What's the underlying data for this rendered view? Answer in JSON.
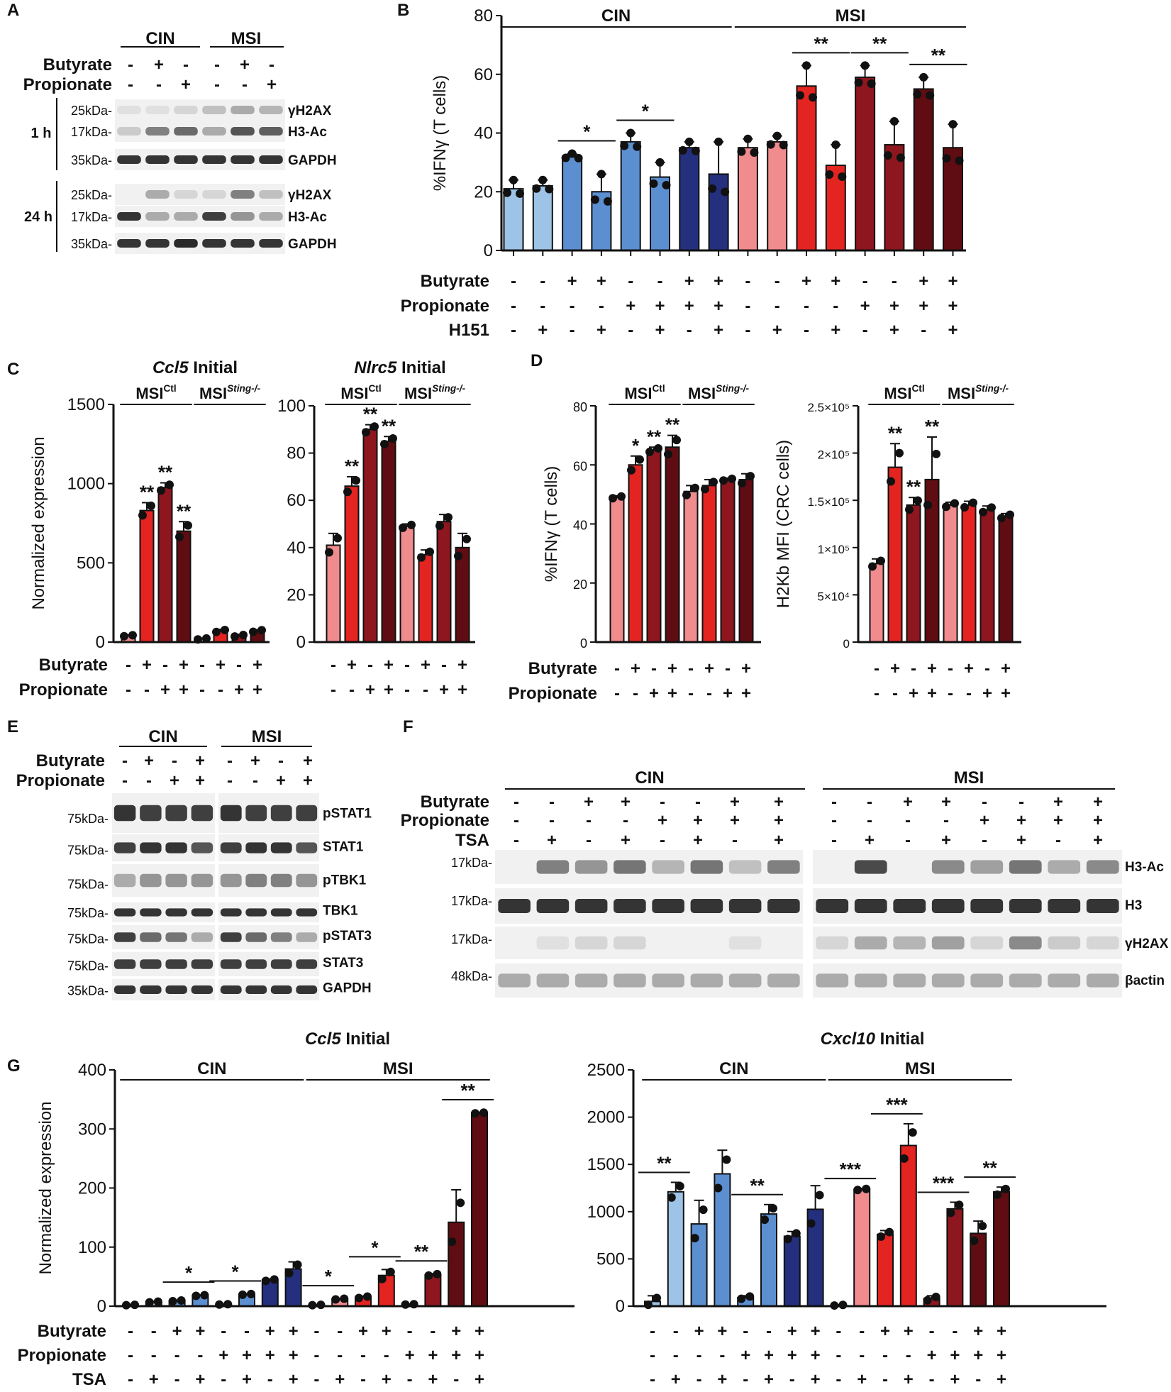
{
  "colors": {
    "light_blue": "#9dc3e6",
    "mid_blue": "#5b8fd0",
    "dark_blue": "#24307e",
    "pink": "#f08b8e",
    "red": "#e32421",
    "dark_red": "#8e161e",
    "maroon": "#5f0d12",
    "black": "#111111"
  },
  "panels": {
    "A": "A",
    "B": "B",
    "C": "C",
    "D": "D",
    "E": "E",
    "F": "F",
    "G": "G"
  },
  "common": {
    "butyrate": "Butyrate",
    "propionate": "Propionate",
    "h151": "H151",
    "tsa": "TSA",
    "cin": "CIN",
    "msi": "MSI",
    "msi_ctl": "MSI",
    "ctl_sup": "Ctl",
    "sting_sup": "Sting-/-",
    "norm_expr": "Normalized expression",
    "ifng_t": "%IFNγ (T cells)",
    "h2kb": "H2Kb MFI (CRC cells)",
    "ccl5_initial_gene": "Ccl5",
    "nlrc5_initial_gene": "Nlrc5",
    "cxcl10_initial_gene": "Cxcl10",
    "initial_word": "Initial"
  },
  "blotA": {
    "time_1h": "1 h",
    "time_24h": "24 h",
    "mw": [
      "25kDa-",
      "17kDa-",
      "35kDa-"
    ],
    "bands": [
      "γH2AX",
      "H3-Ac",
      "GAPDH"
    ],
    "butyrate_signs": [
      "-",
      "+",
      "-",
      "-",
      "+",
      "-"
    ],
    "propionate_signs": [
      "-",
      "-",
      "+",
      "-",
      "-",
      "+"
    ]
  },
  "blotE": {
    "butyrate_signs": [
      "-",
      "+",
      "-",
      "+",
      "-",
      "+",
      "-",
      "+"
    ],
    "propionate_signs": [
      "-",
      "-",
      "+",
      "+",
      "-",
      "-",
      "+",
      "+"
    ],
    "rows": [
      {
        "mw": "75kDa-",
        "label": "pSTAT1"
      },
      {
        "mw": "75kDa-",
        "label": "STAT1"
      },
      {
        "mw": "75kDa-",
        "label": "pTBK1"
      },
      {
        "mw": "75kDa-",
        "label": "TBK1"
      },
      {
        "mw": "75kDa-",
        "label": "pSTAT3"
      },
      {
        "mw": "75kDa-",
        "label": "STAT3"
      },
      {
        "mw": "35kDa-",
        "label": "GAPDH"
      }
    ]
  },
  "blotF": {
    "butyrate_signs": [
      "-",
      "-",
      "+",
      "+",
      "-",
      "-",
      "+",
      "+"
    ],
    "propionate_signs": [
      "-",
      "-",
      "-",
      "-",
      "+",
      "+",
      "+",
      "+"
    ],
    "tsa_signs": [
      "-",
      "+",
      "-",
      "+",
      "-",
      "+",
      "-",
      "+"
    ],
    "rows": [
      {
        "mw": "17kDa-",
        "label": "H3-Ac"
      },
      {
        "mw": "17kDa-",
        "label": "H3"
      },
      {
        "mw": "17kDa-",
        "label": "γH2AX"
      },
      {
        "mw": "48kDa-",
        "label": "βactin"
      }
    ]
  },
  "chart_data": [
    {
      "id": "B",
      "type": "bar",
      "title": "",
      "ylabel": "%IFNγ (T cells)",
      "ylim": [
        0,
        80
      ],
      "yticks": [
        0,
        20,
        40,
        60,
        80
      ],
      "groups": [
        "CIN",
        "MSI"
      ],
      "values": [
        21,
        22,
        32,
        20,
        37,
        25,
        35,
        26,
        35,
        37,
        56,
        29,
        59,
        36,
        55,
        35
      ],
      "errors": [
        3,
        2,
        1,
        6,
        3,
        5,
        2,
        11,
        3,
        2,
        7,
        7,
        4,
        8,
        4,
        8
      ],
      "bar_colors": [
        "light_blue",
        "light_blue",
        "mid_blue",
        "mid_blue",
        "mid_blue",
        "mid_blue",
        "dark_blue",
        "dark_blue",
        "pink",
        "pink",
        "red",
        "red",
        "dark_red",
        "dark_red",
        "maroon",
        "maroon"
      ],
      "row_labels": [
        "Butyrate",
        "Propionate",
        "H151"
      ],
      "signs": [
        [
          "-",
          "-",
          "+",
          "+",
          "-",
          "-",
          "+",
          "+",
          "-",
          "-",
          "+",
          "+",
          "-",
          "-",
          "+",
          "+"
        ],
        [
          "-",
          "-",
          "-",
          "-",
          "+",
          "+",
          "+",
          "+",
          "-",
          "-",
          "-",
          "-",
          "+",
          "+",
          "+",
          "+"
        ],
        [
          "-",
          "+",
          "-",
          "+",
          "-",
          "+",
          "-",
          "+",
          "-",
          "+",
          "-",
          "+",
          "-",
          "+",
          "-",
          "+"
        ]
      ],
      "annotations": [
        {
          "bars": [
            2,
            3
          ],
          "label": "*"
        },
        {
          "bars": [
            4,
            5
          ],
          "label": "*"
        },
        {
          "bars": [
            10,
            11
          ],
          "label": "**"
        },
        {
          "bars": [
            12,
            13
          ],
          "label": "**"
        },
        {
          "bars": [
            14,
            15
          ],
          "label": "**"
        }
      ]
    },
    {
      "id": "C1",
      "type": "bar",
      "title": "Ccl5 Initial",
      "ylabel": "Normalized expression",
      "ylim": [
        0,
        1500
      ],
      "yticks": [
        0,
        500,
        1000,
        1500
      ],
      "groups": [
        "MSICtl",
        "MSISting-/-"
      ],
      "values": [
        40,
        830,
        975,
        700,
        20,
        70,
        40,
        70
      ],
      "errors": [
        5,
        50,
        30,
        60,
        5,
        10,
        8,
        8
      ],
      "bar_colors": [
        "pink",
        "red",
        "dark_red",
        "maroon",
        "pink",
        "red",
        "dark_red",
        "maroon"
      ],
      "row_labels": [
        "Butyrate",
        "Propionate"
      ],
      "signs": [
        [
          "-",
          "+",
          "-",
          "+",
          "-",
          "+",
          "-",
          "+"
        ],
        [
          "-",
          "-",
          "+",
          "+",
          "-",
          "-",
          "+",
          "+"
        ]
      ],
      "stars": [
        null,
        "**",
        "**",
        "**",
        null,
        null,
        null,
        null
      ]
    },
    {
      "id": "C2",
      "type": "bar",
      "title": "Nlrc5 Initial",
      "ylabel": "",
      "ylim": [
        0,
        100
      ],
      "yticks": [
        0,
        20,
        40,
        60,
        80,
        100
      ],
      "groups": [
        "MSICtl",
        "MSISting-/-"
      ],
      "values": [
        41,
        66,
        90,
        85,
        49,
        37,
        51,
        40
      ],
      "errors": [
        5,
        4,
        2,
        2,
        1,
        2,
        3,
        6
      ],
      "bar_colors": [
        "pink",
        "red",
        "dark_red",
        "maroon",
        "pink",
        "red",
        "dark_red",
        "maroon"
      ],
      "row_labels": [],
      "signs": [
        [
          "-",
          "+",
          "-",
          "+",
          "-",
          "+",
          "-",
          "+"
        ],
        [
          "-",
          "-",
          "+",
          "+",
          "-",
          "-",
          "+",
          "+"
        ]
      ],
      "stars": [
        null,
        "**",
        "**",
        "**",
        null,
        null,
        null,
        null
      ]
    },
    {
      "id": "D1",
      "type": "bar",
      "title": "",
      "ylabel": "%IFNγ (T cells)",
      "ylim": [
        0,
        80
      ],
      "yticks": [
        0,
        20,
        40,
        60,
        80
      ],
      "groups": [
        "MSICtl",
        "MSISting-/-"
      ],
      "values": [
        49,
        60,
        65,
        66,
        51,
        53,
        55,
        55
      ],
      "errors": [
        0.5,
        3,
        1,
        4,
        2,
        2,
        0.5,
        2
      ],
      "bar_colors": [
        "pink",
        "red",
        "dark_red",
        "maroon",
        "pink",
        "red",
        "dark_red",
        "maroon"
      ],
      "row_labels": [
        "Butyrate",
        "Propionate"
      ],
      "signs": [
        [
          "-",
          "+",
          "-",
          "+",
          "-",
          "+",
          "-",
          "+"
        ],
        [
          "-",
          "-",
          "+",
          "+",
          "-",
          "-",
          "+",
          "+"
        ]
      ],
      "stars": [
        null,
        "*",
        "**",
        "**",
        null,
        null,
        null,
        null
      ]
    },
    {
      "id": "D2",
      "type": "bar",
      "title": "",
      "ylabel": "H2Kb MFI (CRC cells)",
      "ylim": [
        0,
        250000
      ],
      "yticks": [
        0,
        50000,
        100000,
        150000,
        200000,
        250000
      ],
      "ytick_labels": [
        "0",
        "5×10⁴",
        "1×10⁵",
        "1.5×10⁵",
        "2×10⁵",
        "2.5×10⁵"
      ],
      "groups": [
        "MSICtl",
        "MSISting-/-"
      ],
      "values": [
        83000,
        185000,
        145000,
        172000,
        145000,
        145000,
        140000,
        133000
      ],
      "errors": [
        5000,
        25000,
        8000,
        45000,
        3000,
        4000,
        4000,
        3000
      ],
      "bar_colors": [
        "pink",
        "red",
        "dark_red",
        "maroon",
        "pink",
        "red",
        "dark_red",
        "maroon"
      ],
      "row_labels": [],
      "signs": [
        [
          "-",
          "+",
          "-",
          "+",
          "-",
          "+",
          "-",
          "+"
        ],
        [
          "-",
          "-",
          "+",
          "+",
          "-",
          "-",
          "+",
          "+"
        ]
      ],
      "stars": [
        null,
        "**",
        "**",
        "**",
        null,
        null,
        null,
        null
      ]
    },
    {
      "id": "G1",
      "type": "bar",
      "title": "Ccl5 Initial",
      "ylabel": "Normalized expression",
      "ylim": [
        0,
        400
      ],
      "yticks": [
        0,
        100,
        200,
        300,
        400
      ],
      "groups": [
        "CIN",
        "MSI"
      ],
      "values": [
        2,
        7,
        9,
        18,
        3,
        20,
        44,
        63,
        2,
        12,
        15,
        52,
        3,
        53,
        142,
        327
      ],
      "errors": [
        0.5,
        1,
        1,
        1,
        0.5,
        1,
        2,
        12,
        0.5,
        1,
        2,
        10,
        0.5,
        2,
        55,
        1
      ],
      "bar_colors": [
        "light_blue",
        "light_blue",
        "mid_blue",
        "mid_blue",
        "mid_blue",
        "mid_blue",
        "dark_blue",
        "dark_blue",
        "pink",
        "pink",
        "red",
        "red",
        "dark_red",
        "dark_red",
        "maroon",
        "maroon"
      ],
      "row_labels": [
        "Butyrate",
        "Propionate",
        "TSA"
      ],
      "signs": [
        [
          "-",
          "-",
          "+",
          "+",
          "-",
          "-",
          "+",
          "+",
          "-",
          "-",
          "+",
          "+",
          "-",
          "-",
          "+",
          "+"
        ],
        [
          "-",
          "-",
          "-",
          "-",
          "+",
          "+",
          "+",
          "+",
          "-",
          "-",
          "-",
          "-",
          "+",
          "+",
          "+",
          "+"
        ],
        [
          "-",
          "+",
          "-",
          "+",
          "-",
          "+",
          "-",
          "+",
          "-",
          "+",
          "-",
          "+",
          "-",
          "+",
          "-",
          "+"
        ]
      ],
      "annotations": [
        {
          "bars": [
            2,
            3
          ],
          "label": "*"
        },
        {
          "bars": [
            4,
            5
          ],
          "label": "*"
        },
        {
          "bars": [
            8,
            9
          ],
          "label": "*"
        },
        {
          "bars": [
            10,
            11
          ],
          "label": "*"
        },
        {
          "bars": [
            12,
            13
          ],
          "label": "**"
        },
        {
          "bars": [
            14,
            15
          ],
          "label": "**"
        }
      ]
    },
    {
      "id": "G2",
      "type": "bar",
      "title": "Cxcl10 Initial",
      "ylabel": "",
      "ylim": [
        0,
        2500
      ],
      "yticks": [
        0,
        500,
        1000,
        1500,
        2000,
        2500
      ],
      "groups": [
        "CIN",
        "MSI"
      ],
      "values": [
        50,
        1210,
        870,
        1400,
        90,
        975,
        740,
        1025,
        10,
        1235,
        760,
        1700,
        80,
        1030,
        770,
        1210
      ],
      "errors": [
        60,
        100,
        250,
        250,
        20,
        100,
        50,
        250,
        5,
        10,
        40,
        230,
        30,
        70,
        130,
        50
      ],
      "bar_colors": [
        "light_blue",
        "light_blue",
        "mid_blue",
        "mid_blue",
        "mid_blue",
        "mid_blue",
        "dark_blue",
        "dark_blue",
        "pink",
        "pink",
        "red",
        "red",
        "dark_red",
        "dark_red",
        "maroon",
        "maroon"
      ],
      "row_labels": [],
      "signs": [
        [
          "-",
          "-",
          "+",
          "+",
          "-",
          "-",
          "+",
          "+",
          "-",
          "-",
          "+",
          "+",
          "-",
          "-",
          "+",
          "+"
        ],
        [
          "-",
          "-",
          "-",
          "-",
          "+",
          "+",
          "+",
          "+",
          "-",
          "-",
          "-",
          "-",
          "+",
          "+",
          "+",
          "+"
        ],
        [
          "-",
          "+",
          "-",
          "+",
          "-",
          "+",
          "-",
          "+",
          "-",
          "+",
          "-",
          "+",
          "-",
          "+",
          "-",
          "+"
        ]
      ],
      "annotations": [
        {
          "bars": [
            0,
            1
          ],
          "label": "**"
        },
        {
          "bars": [
            4,
            5
          ],
          "label": "**"
        },
        {
          "bars": [
            8,
            9
          ],
          "label": "***"
        },
        {
          "bars": [
            10,
            11
          ],
          "label": "***"
        },
        {
          "bars": [
            12,
            13
          ],
          "label": "***"
        },
        {
          "bars": [
            14,
            15
          ],
          "label": "**"
        }
      ]
    }
  ]
}
